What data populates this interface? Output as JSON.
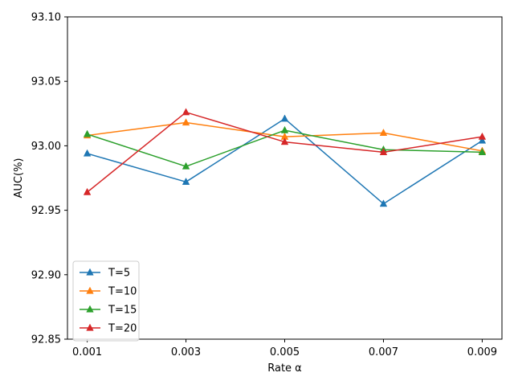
{
  "chart_data": {
    "type": "line",
    "title": "",
    "xlabel": "Rate α",
    "ylabel": "AUC(%)",
    "x_ticks": [
      "0.001",
      "0.003",
      "0.005",
      "0.007",
      "0.009"
    ],
    "x_values": [
      0.001,
      0.003,
      0.005,
      0.007,
      0.009
    ],
    "xlim": [
      0.0006,
      0.0094
    ],
    "ylim": [
      92.85,
      93.1
    ],
    "y_ticks": [
      92.85,
      92.9,
      92.95,
      93.0,
      93.05,
      93.1
    ],
    "y_tick_labels": [
      "92.85",
      "92.90",
      "92.95",
      "93.00",
      "93.05",
      "93.10"
    ],
    "grid": false,
    "legend_position": "lower-left",
    "marker": "triangle-up",
    "series": [
      {
        "name": "T=5",
        "color": "#1f77b4",
        "values": [
          92.994,
          92.972,
          93.021,
          92.955,
          93.004
        ]
      },
      {
        "name": "T=10",
        "color": "#ff7f0e",
        "values": [
          93.008,
          93.018,
          93.007,
          93.01,
          92.996
        ]
      },
      {
        "name": "T=15",
        "color": "#2ca02c",
        "values": [
          93.009,
          92.984,
          93.012,
          92.997,
          92.995
        ]
      },
      {
        "name": "T=20",
        "color": "#d62728",
        "values": [
          92.964,
          93.026,
          93.003,
          92.995,
          93.007
        ]
      }
    ]
  }
}
